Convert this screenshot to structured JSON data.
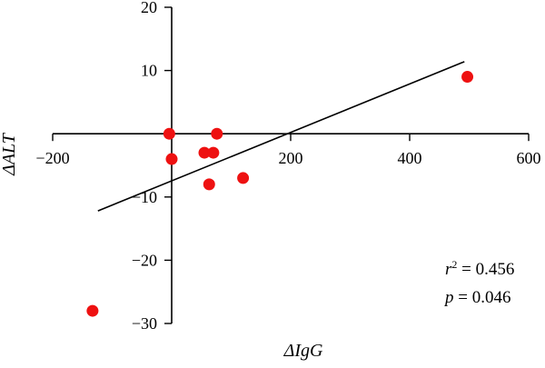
{
  "chart_data": {
    "type": "scatter",
    "xlabel": "ΔIgG",
    "ylabel": "ΔALT",
    "xlim": [
      -200,
      600
    ],
    "ylim": [
      -30,
      20
    ],
    "xticks": [
      -200,
      200,
      400,
      600
    ],
    "yticks": [
      -30,
      -20,
      -10,
      10,
      20
    ],
    "xtick_labels": [
      "−200",
      "200",
      "400",
      "600"
    ],
    "ytick_labels": [
      "−30",
      "−20",
      "−10",
      "10",
      "20"
    ],
    "point_color": "#ee1111",
    "points": [
      {
        "x": -133,
        "y": -28
      },
      {
        "x": -4,
        "y": 0
      },
      {
        "x": 0,
        "y": -4
      },
      {
        "x": 55,
        "y": -3
      },
      {
        "x": 63,
        "y": -8
      },
      {
        "x": 70,
        "y": -3
      },
      {
        "x": 76,
        "y": 0
      },
      {
        "x": 120,
        "y": -7
      },
      {
        "x": 497,
        "y": 9
      }
    ],
    "regression_line": {
      "x": [
        -124,
        492
      ],
      "y": [
        -12.2,
        11.4
      ],
      "color": "#000000"
    },
    "annotation": {
      "r2_prefix": "r",
      "r2_sup": "2",
      "r2_value": " = 0.456",
      "p_prefix": "p",
      "p_value": " = 0.046"
    },
    "grid": false
  }
}
